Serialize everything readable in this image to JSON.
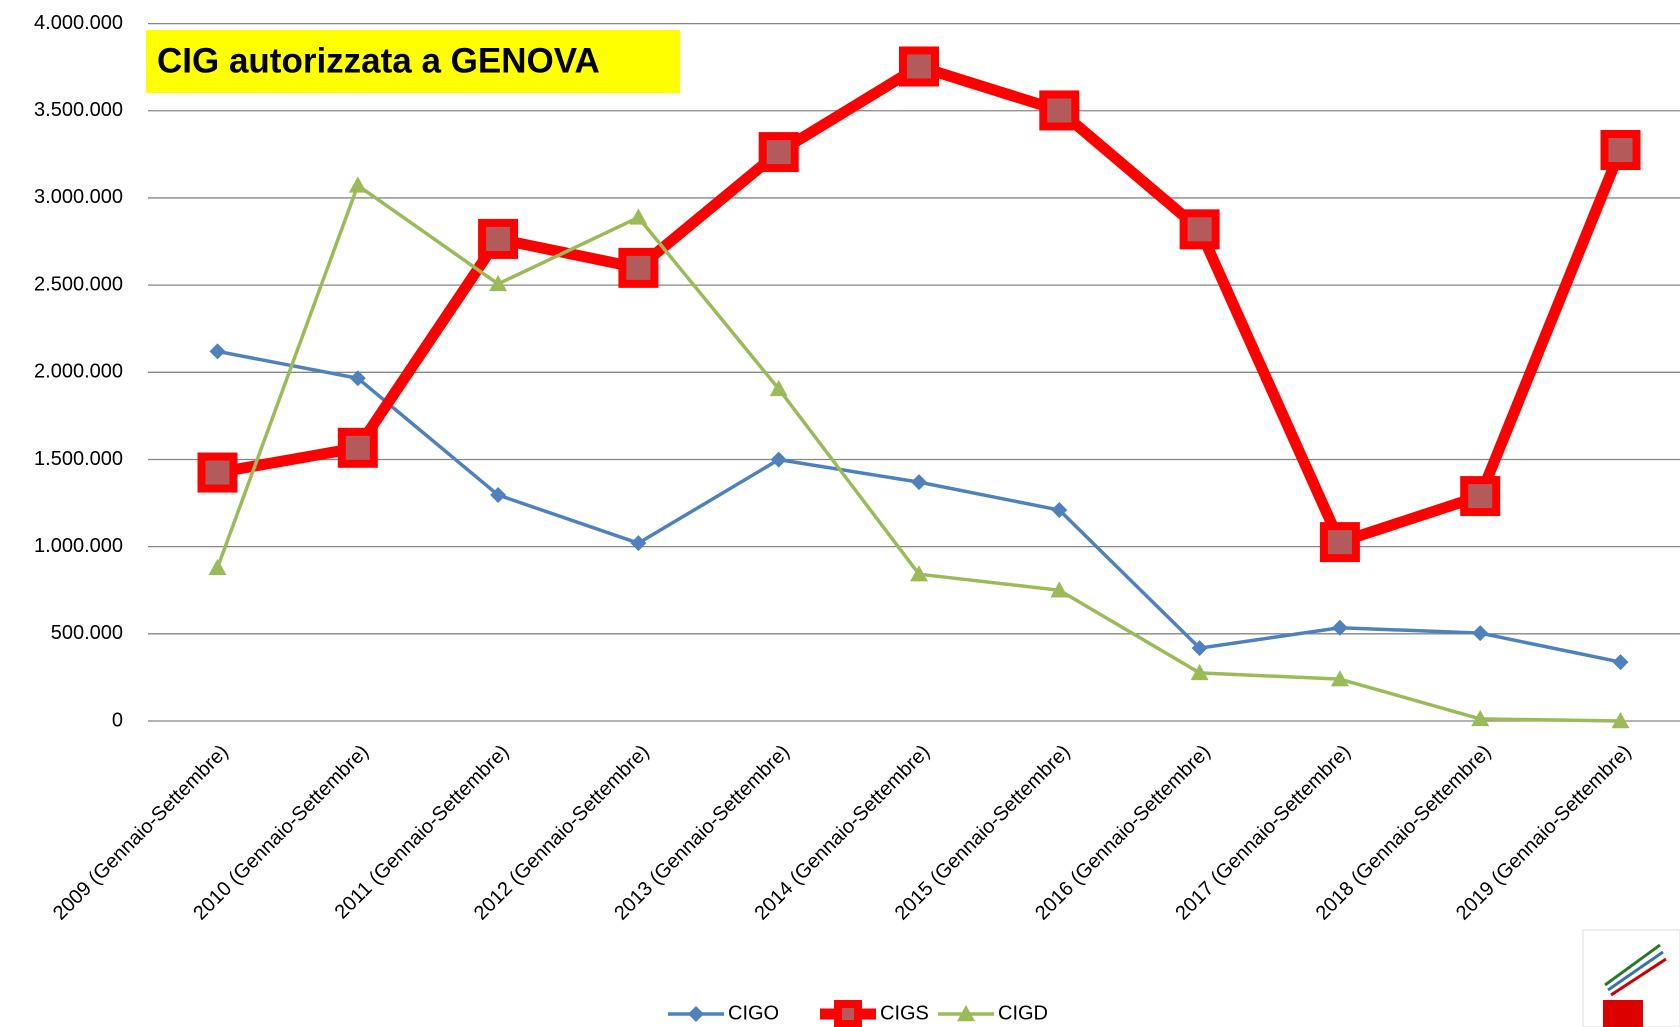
{
  "chart_data": {
    "type": "line",
    "title": "CIG autorizzata a GENOVA",
    "categories": [
      "2009 (Gennaio-Settembre)",
      "2010 (Gennaio-Settembre)",
      "2011 (Gennaio-Settembre)",
      "2012 (Gennaio-Settembre)",
      "2013 (Gennaio-Settembre)",
      "2014 (Gennaio-Settembre)",
      "2015 (Gennaio-Settembre)",
      "2016 (Gennaio-Settembre)",
      "2017 (Gennaio-Settembre)",
      "2018 (Gennaio-Settembre)",
      "2019 (Gennaio-Settembre)"
    ],
    "series": [
      {
        "name": "CIGO",
        "color": "#4f81bd",
        "values": [
          2120000,
          1966000,
          1296000,
          1020000,
          1499000,
          1370000,
          1210000,
          418000,
          535000,
          504000,
          338000
        ]
      },
      {
        "name": "CIGS",
        "color": "#ff0000",
        "values": [
          1425000,
          1567000,
          2765000,
          2599000,
          3263000,
          3754000,
          3502000,
          2820000,
          1026000,
          1290000,
          3275000
        ]
      },
      {
        "name": "CIGD",
        "color": "#9bbb59",
        "values": [
          879000,
          3072000,
          2507000,
          2888000,
          1905000,
          842000,
          750000,
          276000,
          240000,
          12000,
          0
        ]
      }
    ],
    "ylim": [
      0,
      4000000
    ],
    "yticks": [
      0,
      {
        "value": 500000,
        "label": "500.000"
      },
      {
        "value": 1000000,
        "label": "1.000.000"
      },
      {
        "value": 1500000,
        "label": "1.500.000"
      },
      {
        "value": 2000000,
        "label": "2.000.000"
      },
      {
        "value": 2500000,
        "label": "2.500.000"
      },
      {
        "value": 3000000,
        "label": "3.000.000"
      },
      {
        "value": 3500000,
        "label": "3.500.000"
      },
      {
        "value": 4000000,
        "label": "4.000.000"
      }
    ],
    "grid": true,
    "legend": "bottom"
  }
}
